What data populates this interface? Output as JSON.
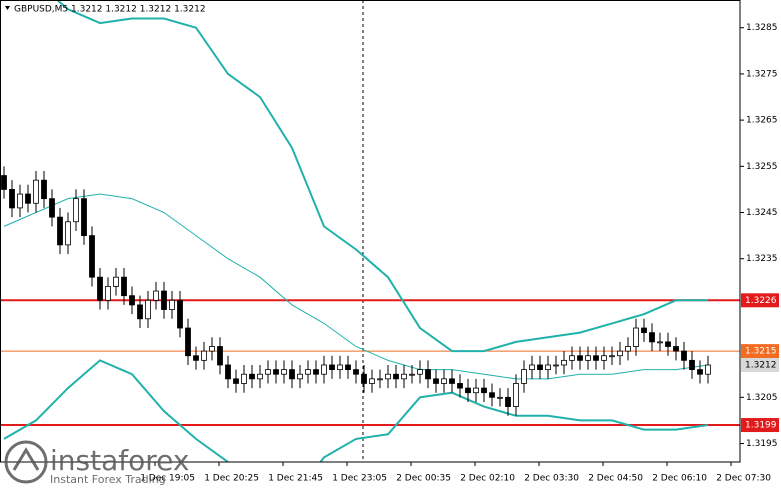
{
  "chart_data": {
    "type": "candlestick",
    "title": "GBPUSD,M5  1.3212 1.3212 1.3212 1.3212",
    "ylim": [
      1.3191,
      1.3291
    ],
    "yticks": [
      1.3285,
      1.3275,
      1.3265,
      1.3255,
      1.3245,
      1.3235,
      1.3205,
      1.3195
    ],
    "xtick_labels": [
      "1 Dec 19:05",
      "1 Dec 20:25",
      "1 Dec 21:45",
      "1 Dec 23:05",
      "2 Dec 00:35",
      "2 Dec 02:10",
      "2 Dec 03:30",
      "2 Dec 04:50",
      "2 Dec 06:10",
      "2 Dec 07:30"
    ],
    "open": [
      1.3253,
      1.325,
      1.3246,
      1.3249,
      1.3247,
      1.3252,
      1.3248,
      1.3244,
      1.3238,
      1.3243,
      1.3248,
      1.324,
      1.3231,
      1.3226,
      1.3229,
      1.3231,
      1.3227,
      1.3225,
      1.3222,
      1.3226,
      1.3228,
      1.3224,
      1.3226,
      1.322,
      1.3214,
      1.3213,
      1.3215,
      1.3216,
      1.3212,
      1.3209,
      1.3208,
      1.321,
      1.3209,
      1.321,
      1.3211,
      1.321,
      1.3211,
      1.3209,
      1.321,
      1.3211,
      1.321,
      1.3212,
      1.3211,
      1.3212,
      1.3211,
      1.321,
      1.3208,
      1.3209,
      1.3209,
      1.321,
      1.3209,
      1.321,
      1.321,
      1.3211,
      1.3209,
      1.3208,
      1.3209,
      1.3208,
      1.3207,
      1.3206,
      1.3207,
      1.3206,
      1.3205,
      1.3205,
      1.3203,
      1.3208,
      1.3211,
      1.3212,
      1.3211,
      1.3212,
      1.3212,
      1.3213,
      1.3214,
      1.3213,
      1.3214,
      1.3213,
      1.3214,
      1.3214,
      1.3215,
      1.3216,
      1.322,
      1.3219,
      1.3217,
      1.3217,
      1.3216,
      1.3215,
      1.3213,
      1.3211,
      1.321
    ],
    "high": [
      1.3255,
      1.3252,
      1.3251,
      1.3251,
      1.3254,
      1.3254,
      1.325,
      1.3246,
      1.3245,
      1.325,
      1.325,
      1.3242,
      1.3233,
      1.3231,
      1.3233,
      1.3233,
      1.3229,
      1.3227,
      1.3228,
      1.323,
      1.323,
      1.3228,
      1.3228,
      1.3222,
      1.3216,
      1.3217,
      1.3218,
      1.3218,
      1.3214,
      1.3211,
      1.3212,
      1.3212,
      1.3212,
      1.3213,
      1.3213,
      1.3213,
      1.3213,
      1.3212,
      1.3213,
      1.3213,
      1.3214,
      1.3214,
      1.3214,
      1.3214,
      1.3213,
      1.3212,
      1.3211,
      1.3211,
      1.3212,
      1.3212,
      1.3212,
      1.3212,
      1.3213,
      1.3213,
      1.3211,
      1.3211,
      1.3211,
      1.321,
      1.3209,
      1.3209,
      1.3209,
      1.3208,
      1.3207,
      1.3207,
      1.321,
      1.3213,
      1.3214,
      1.3214,
      1.3214,
      1.3214,
      1.3215,
      1.3216,
      1.3216,
      1.3216,
      1.3216,
      1.3216,
      1.3216,
      1.3217,
      1.3218,
      1.3222,
      1.3222,
      1.3221,
      1.3219,
      1.3219,
      1.3218,
      1.3217,
      1.3215,
      1.3213,
      1.3214
    ],
    "low": [
      1.3248,
      1.3244,
      1.3244,
      1.3245,
      1.3245,
      1.3246,
      1.3242,
      1.3236,
      1.3236,
      1.3241,
      1.3238,
      1.3229,
      1.3224,
      1.3224,
      1.3227,
      1.3225,
      1.3223,
      1.322,
      1.322,
      1.3224,
      1.3222,
      1.3222,
      1.3218,
      1.3212,
      1.3211,
      1.3211,
      1.3213,
      1.321,
      1.3207,
      1.3206,
      1.3206,
      1.3207,
      1.3207,
      1.3208,
      1.3208,
      1.3208,
      1.3207,
      1.3207,
      1.3208,
      1.3208,
      1.3208,
      1.3209,
      1.3209,
      1.3209,
      1.3208,
      1.3206,
      1.3206,
      1.3207,
      1.3207,
      1.3207,
      1.3207,
      1.3208,
      1.3208,
      1.3207,
      1.3206,
      1.3206,
      1.3206,
      1.3205,
      1.3204,
      1.3204,
      1.3204,
      1.3203,
      1.3203,
      1.3201,
      1.3201,
      1.3206,
      1.3209,
      1.3209,
      1.3209,
      1.321,
      1.321,
      1.3211,
      1.3211,
      1.3211,
      1.3211,
      1.3211,
      1.3212,
      1.3212,
      1.3213,
      1.3214,
      1.3217,
      1.3215,
      1.3215,
      1.3214,
      1.3213,
      1.3211,
      1.3209,
      1.3208,
      1.3208
    ],
    "close": [
      1.325,
      1.3246,
      1.3249,
      1.3247,
      1.3252,
      1.3248,
      1.3244,
      1.3238,
      1.3243,
      1.3248,
      1.324,
      1.3231,
      1.3226,
      1.3229,
      1.3231,
      1.3227,
      1.3225,
      1.3222,
      1.3226,
      1.3228,
      1.3224,
      1.3226,
      1.322,
      1.3214,
      1.3213,
      1.3215,
      1.3216,
      1.3212,
      1.3209,
      1.3208,
      1.321,
      1.3209,
      1.321,
      1.3211,
      1.321,
      1.3211,
      1.3209,
      1.321,
      1.3211,
      1.321,
      1.3212,
      1.3211,
      1.3212,
      1.3211,
      1.321,
      1.3208,
      1.3209,
      1.3209,
      1.321,
      1.3209,
      1.321,
      1.321,
      1.3211,
      1.3209,
      1.3208,
      1.3209,
      1.3208,
      1.3207,
      1.3206,
      1.3207,
      1.3206,
      1.3205,
      1.3205,
      1.3203,
      1.3208,
      1.3211,
      1.3212,
      1.3211,
      1.3212,
      1.3212,
      1.3213,
      1.3214,
      1.3213,
      1.3214,
      1.3213,
      1.3214,
      1.3214,
      1.3215,
      1.3216,
      1.322,
      1.3219,
      1.3217,
      1.3217,
      1.3216,
      1.3215,
      1.3213,
      1.3211,
      1.321,
      1.3212
    ],
    "band_x": [
      0,
      4,
      8,
      12,
      16,
      20,
      24,
      28,
      32,
      36,
      40,
      44,
      48,
      52,
      56,
      60,
      64,
      68,
      72,
      76,
      80,
      84,
      88
    ],
    "bands": [
      {
        "color": "#20b2aa",
        "width": 2,
        "values": [
          1.33,
          1.3295,
          1.3289,
          1.3286,
          1.3287,
          1.3287,
          1.3285,
          1.3275,
          1.327,
          1.3259,
          1.3242,
          1.3237,
          1.3231,
          1.322,
          1.3215,
          1.3215,
          1.3217,
          1.3218,
          1.3219,
          1.3221,
          1.3223,
          1.3226,
          1.3226
        ]
      },
      {
        "color": "#20b2aa",
        "width": 1,
        "values": [
          1.3242,
          1.3245,
          1.3248,
          1.3249,
          1.3248,
          1.3245,
          1.324,
          1.3235,
          1.3231,
          1.3225,
          1.3221,
          1.3216,
          1.3213,
          1.3211,
          1.3211,
          1.321,
          1.3209,
          1.3209,
          1.321,
          1.321,
          1.3211,
          1.3211,
          1.3212
        ]
      },
      {
        "color": "#20b2aa",
        "width": 2,
        "values": [
          1.3196,
          1.32,
          1.3207,
          1.3213,
          1.321,
          1.3202,
          1.3196,
          1.3191,
          1.3186,
          1.3183,
          1.3192,
          1.3196,
          1.3197,
          1.3205,
          1.3206,
          1.3203,
          1.3201,
          1.3201,
          1.32,
          1.32,
          1.3198,
          1.3198,
          1.3199
        ]
      }
    ],
    "levels": [
      {
        "value": 1.3226,
        "color": "#e31a1c",
        "width": 2,
        "text_color": "#ffffff"
      },
      {
        "value": 1.3215,
        "color": "#f26b21",
        "width": 1,
        "text_color": "#ffffff"
      },
      {
        "value": 1.3199,
        "color": "#e31a1c",
        "width": 2,
        "text_color": "#ffffff"
      }
    ],
    "current": {
      "value": 1.3212,
      "color": "#d8d8d8",
      "text_color": "#000000"
    },
    "watermark": {
      "title": "instaforex",
      "subtitle": "Instant Forex Trading"
    }
  }
}
